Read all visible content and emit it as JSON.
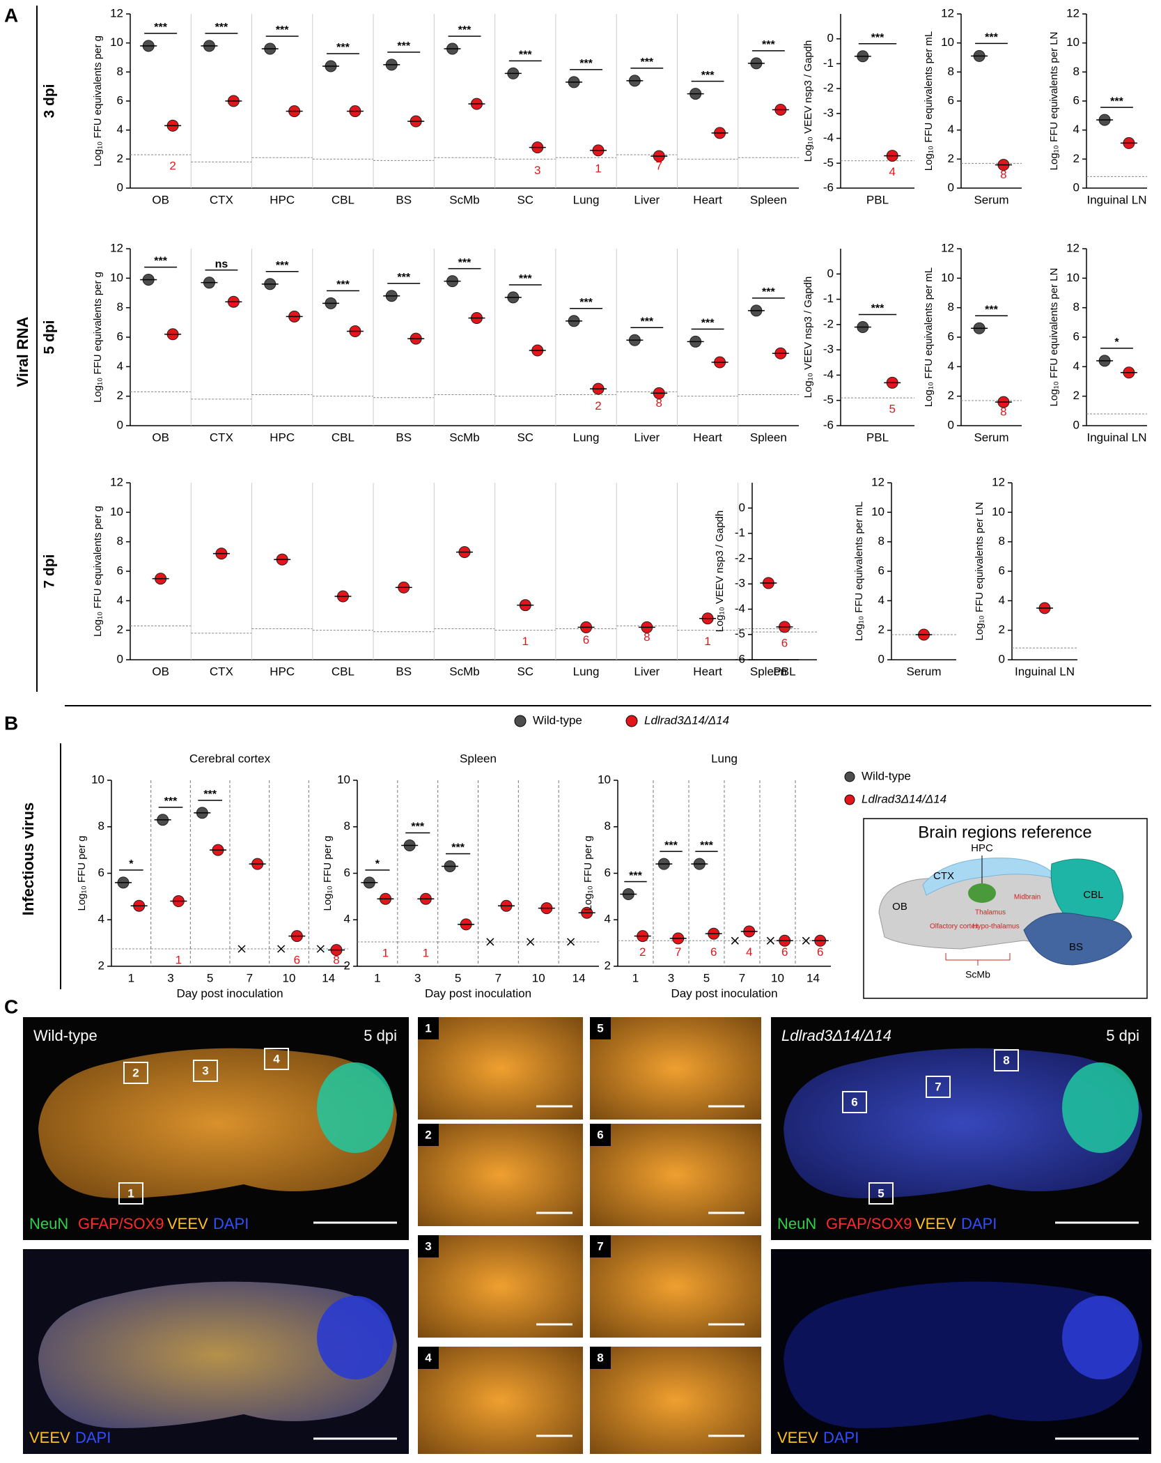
{
  "labels": {
    "A": "A",
    "B": "B",
    "C": "C",
    "viral_rna": "Viral RNA",
    "infectious": "Infectious virus",
    "dpi3": "3 dpi",
    "dpi5": "5 dpi",
    "dpi7": "7 dpi"
  },
  "legend": [
    {
      "name": "Wild-type",
      "color": "#4d4d4d"
    },
    {
      "name": "Ldlrad3Δ14/Δ14",
      "color": "#e3151b"
    }
  ],
  "brain_reference": {
    "title": "Brain regions reference",
    "regions": [
      "HPC",
      "CTX",
      "OB",
      "CBL",
      "BS",
      "Thalamus",
      "Midbrain",
      "Olfactory cortex",
      "Hypo-thalamus",
      "ScMb"
    ]
  },
  "panel_c": {
    "wt_title": "Wild-type",
    "ko_title": "Ldlrad3Δ14/Δ14",
    "dpi": "5 dpi",
    "neun": "NeuN",
    "gfap": "GFAP/SOX9",
    "veev": "VEEV",
    "dapi": "DAPI",
    "boxes": [
      "1",
      "2",
      "3",
      "4",
      "5",
      "6",
      "7",
      "8"
    ]
  },
  "chart_data": [
    {
      "type": "dot",
      "y_label": "Log₁₀ FFU equivalents per g",
      "categories": [
        "OB",
        "CTX",
        "HPC",
        "CBL",
        "BS",
        "ScMb",
        "SC",
        "Lung",
        "Liver",
        "Heart",
        "Spleen"
      ],
      "series": [
        {
          "color": "#4d4d4d",
          "values": [
            9.8,
            9.8,
            9.6,
            8.4,
            8.5,
            9.6,
            7.9,
            7.3,
            7.4,
            6.5,
            8.6
          ]
        },
        {
          "color": "#e3151b",
          "values": [
            4.3,
            6.0,
            5.3,
            5.3,
            4.6,
            5.8,
            2.8,
            2.6,
            2.2,
            3.8,
            5.4
          ]
        }
      ],
      "ylim": [
        0,
        12
      ],
      "yticks": [
        0,
        2,
        4,
        6,
        8,
        10,
        12
      ],
      "lod": [
        2.3,
        1.8,
        2.1,
        2.0,
        1.9,
        2.1,
        2.0,
        2.1,
        2.3,
        2.0,
        2.1
      ],
      "lod_counts": [
        "2",
        null,
        null,
        null,
        null,
        null,
        "3",
        "1",
        "7",
        null,
        null
      ],
      "significance": [
        "***",
        "***",
        "***",
        "***",
        "***",
        "***",
        "***",
        "***",
        "***",
        "***",
        "***"
      ]
    },
    {
      "type": "dot",
      "y_label": "Log₁₀ VEEV nsp3 / Gapdh",
      "categories": [
        "PBL"
      ],
      "series": [
        {
          "color": "#4d4d4d",
          "values": [
            -0.7
          ]
        },
        {
          "color": "#e3151b",
          "values": [
            -4.7
          ]
        }
      ],
      "ylim": [
        -6,
        1
      ],
      "yticks": [
        -6,
        -5,
        -4,
        -3,
        -2,
        -1,
        0
      ],
      "lod": [
        -4.9
      ],
      "lod_counts": [
        "4"
      ],
      "significance": [
        "***"
      ]
    },
    {
      "type": "dot",
      "y_label": "Log₁₀ FFU equivalents per mL",
      "categories": [
        "Serum"
      ],
      "series": [
        {
          "color": "#4d4d4d",
          "values": [
            9.1
          ]
        },
        {
          "color": "#e3151b",
          "values": [
            1.6
          ]
        }
      ],
      "ylim": [
        0,
        12
      ],
      "yticks": [
        0,
        2,
        4,
        6,
        8,
        10,
        12
      ],
      "lod": [
        1.7
      ],
      "lod_counts": [
        "8"
      ],
      "significance": [
        "***"
      ]
    },
    {
      "type": "dot",
      "y_label": "Log₁₀ FFU equivalents per LN",
      "categories": [
        "Inguinal LN"
      ],
      "series": [
        {
          "color": "#4d4d4d",
          "values": [
            4.7
          ]
        },
        {
          "color": "#e3151b",
          "values": [
            3.1
          ]
        }
      ],
      "ylim": [
        0,
        12
      ],
      "yticks": [
        0,
        2,
        4,
        6,
        8,
        10,
        12
      ],
      "lod": [
        0.8
      ],
      "lod_counts": [
        null
      ],
      "significance": [
        "***"
      ]
    },
    {
      "type": "dot",
      "y_label": "Log₁₀ FFU equivalents per g",
      "categories": [
        "OB",
        "CTX",
        "HPC",
        "CBL",
        "BS",
        "ScMb",
        "SC",
        "Lung",
        "Liver",
        "Heart",
        "Spleen"
      ],
      "series": [
        {
          "color": "#4d4d4d",
          "values": [
            9.9,
            9.7,
            9.6,
            8.3,
            8.8,
            9.8,
            8.7,
            7.1,
            5.8,
            5.7,
            7.8
          ]
        },
        {
          "color": "#e3151b",
          "values": [
            6.2,
            8.4,
            7.4,
            6.4,
            5.9,
            7.3,
            5.1,
            2.5,
            2.2,
            4.3,
            4.9
          ]
        }
      ],
      "ylim": [
        0,
        12
      ],
      "yticks": [
        0,
        2,
        4,
        6,
        8,
        10,
        12
      ],
      "lod": [
        2.3,
        1.8,
        2.1,
        2.0,
        1.9,
        2.1,
        2.0,
        2.1,
        2.3,
        2.0,
        2.1
      ],
      "lod_counts": [
        null,
        null,
        null,
        null,
        null,
        null,
        null,
        "2",
        "8",
        null,
        null
      ],
      "significance": [
        "***",
        "ns",
        "***",
        "***",
        "***",
        "***",
        "***",
        "***",
        "***",
        "***",
        "***"
      ]
    },
    {
      "type": "dot",
      "y_label": "Log₁₀ VEEV nsp3 / Gapdh",
      "categories": [
        "PBL"
      ],
      "series": [
        {
          "color": "#4d4d4d",
          "values": [
            -2.1
          ]
        },
        {
          "color": "#e3151b",
          "values": [
            -4.3
          ]
        }
      ],
      "ylim": [
        -6,
        1
      ],
      "yticks": [
        -6,
        -5,
        -4,
        -3,
        -2,
        -1,
        0
      ],
      "lod": [
        -4.9
      ],
      "lod_counts": [
        "5"
      ],
      "significance": [
        "***"
      ]
    },
    {
      "type": "dot",
      "y_label": "Log₁₀ FFU equivalents per mL",
      "categories": [
        "Serum"
      ],
      "series": [
        {
          "color": "#4d4d4d",
          "values": [
            6.6
          ]
        },
        {
          "color": "#e3151b",
          "values": [
            1.6
          ]
        }
      ],
      "ylim": [
        0,
        12
      ],
      "yticks": [
        0,
        2,
        4,
        6,
        8,
        10,
        12
      ],
      "lod": [
        1.7
      ],
      "lod_counts": [
        "8"
      ],
      "significance": [
        "***"
      ]
    },
    {
      "type": "dot",
      "y_label": "Log₁₀ FFU equivalents per LN",
      "categories": [
        "Inguinal LN"
      ],
      "series": [
        {
          "color": "#4d4d4d",
          "values": [
            4.4
          ]
        },
        {
          "color": "#e3151b",
          "values": [
            3.6
          ]
        }
      ],
      "ylim": [
        0,
        12
      ],
      "yticks": [
        0,
        2,
        4,
        6,
        8,
        10,
        12
      ],
      "lod": [
        0.8
      ],
      "lod_counts": [
        null
      ],
      "significance": [
        "*"
      ]
    },
    {
      "type": "dot",
      "y_label": "Log₁₀ FFU equivalents per g",
      "categories": [
        "OB",
        "CTX",
        "HPC",
        "CBL",
        "BS",
        "ScMb",
        "SC",
        "Lung",
        "Liver",
        "Heart",
        "Spleen"
      ],
      "series": [
        {
          "color": "#4d4d4d",
          "values": [
            null,
            null,
            null,
            null,
            null,
            null,
            null,
            null,
            null,
            null,
            null
          ]
        },
        {
          "color": "#e3151b",
          "values": [
            5.5,
            7.2,
            6.8,
            4.3,
            4.9,
            7.3,
            3.7,
            2.2,
            2.2,
            2.8,
            5.2
          ]
        }
      ],
      "ylim": [
        0,
        12
      ],
      "yticks": [
        0,
        2,
        4,
        6,
        8,
        10,
        12
      ],
      "lod": [
        2.3,
        1.8,
        2.1,
        2.0,
        1.9,
        2.1,
        2.0,
        2.1,
        2.3,
        2.0,
        2.1
      ],
      "lod_counts": [
        null,
        null,
        null,
        null,
        null,
        null,
        "1",
        "6",
        "8",
        "1",
        null
      ],
      "significance": [
        null,
        null,
        null,
        null,
        null,
        null,
        null,
        null,
        null,
        null,
        null
      ]
    },
    {
      "type": "dot",
      "y_label": "Log₁₀ VEEV nsp3 / Gapdh",
      "categories": [
        "PBL"
      ],
      "series": [
        {
          "color": "#4d4d4d",
          "values": [
            null
          ]
        },
        {
          "color": "#e3151b",
          "values": [
            -4.7
          ]
        }
      ],
      "ylim": [
        -6,
        1
      ],
      "yticks": [
        -6,
        -5,
        -4,
        -3,
        -2,
        -1,
        0
      ],
      "lod": [
        -4.9
      ],
      "lod_counts": [
        "6"
      ],
      "significance": [
        null
      ]
    },
    {
      "type": "dot",
      "y_label": "Log₁₀ FFU equivalents per mL",
      "categories": [
        "Serum"
      ],
      "series": [
        {
          "color": "#4d4d4d",
          "values": [
            null
          ]
        },
        {
          "color": "#e3151b",
          "values": [
            1.7
          ]
        }
      ],
      "ylim": [
        0,
        12
      ],
      "yticks": [
        0,
        2,
        4,
        6,
        8,
        10,
        12
      ],
      "lod": [
        1.7
      ],
      "lod_counts": [
        null
      ],
      "significance": [
        null
      ]
    },
    {
      "type": "dot",
      "y_label": "Log₁₀ FFU equivalents per LN",
      "categories": [
        "Inguinal LN"
      ],
      "series": [
        {
          "color": "#4d4d4d",
          "values": [
            null
          ]
        },
        {
          "color": "#e3151b",
          "values": [
            3.5
          ]
        }
      ],
      "ylim": [
        0,
        12
      ],
      "yticks": [
        0,
        2,
        4,
        6,
        8,
        10,
        12
      ],
      "lod": [
        0.8
      ],
      "lod_counts": [
        null
      ],
      "significance": [
        null
      ]
    },
    {
      "type": "dot",
      "title": "Cerebral cortex",
      "x_label": "Day post inoculation",
      "y_label": "Log₁₀ FFU per g",
      "categories": [
        "1",
        "3",
        "5",
        "7",
        "10",
        "14"
      ],
      "series": [
        {
          "color": "#4d4d4d",
          "values": [
            5.6,
            8.3,
            8.6,
            null,
            null,
            null
          ]
        },
        {
          "color": "#e3151b",
          "values": [
            4.6,
            4.8,
            7.0,
            6.4,
            3.3,
            2.7
          ]
        }
      ],
      "ylim": [
        2,
        10
      ],
      "yticks": [
        2,
        4,
        6,
        8,
        10
      ],
      "lod": [
        2.75,
        2.75,
        2.75,
        2.75,
        2.75,
        2.75
      ],
      "lod_counts": [
        null,
        "1",
        null,
        null,
        "6",
        "8"
      ],
      "significance": [
        "*",
        "***",
        "***",
        null,
        null,
        null
      ]
    },
    {
      "type": "dot",
      "title": "Spleen",
      "x_label": "Day post inoculation",
      "y_label": "Log₁₀ FFU per g",
      "categories": [
        "1",
        "3",
        "5",
        "7",
        "10",
        "14"
      ],
      "series": [
        {
          "color": "#4d4d4d",
          "values": [
            5.6,
            7.2,
            6.3,
            null,
            null,
            null
          ]
        },
        {
          "color": "#e3151b",
          "values": [
            4.9,
            4.9,
            3.8,
            4.6,
            4.5,
            4.3
          ]
        }
      ],
      "ylim": [
        2,
        10
      ],
      "yticks": [
        2,
        4,
        6,
        8,
        10
      ],
      "lod": [
        3.05,
        3.05,
        3.05,
        3.05,
        3.05,
        3.05
      ],
      "lod_counts": [
        "1",
        "1",
        null,
        null,
        null,
        null
      ],
      "significance": [
        "*",
        "***",
        "***",
        null,
        null,
        null
      ]
    },
    {
      "type": "dot",
      "title": "Lung",
      "x_label": "Day post inoculation",
      "y_label": "Log₁₀ FFU per g",
      "categories": [
        "1",
        "3",
        "5",
        "7",
        "10",
        "14"
      ],
      "series": [
        {
          "color": "#4d4d4d",
          "values": [
            5.1,
            6.4,
            6.4,
            null,
            null,
            null
          ]
        },
        {
          "color": "#e3151b",
          "values": [
            3.3,
            3.2,
            3.4,
            3.5,
            3.1,
            3.1
          ]
        }
      ],
      "ylim": [
        2,
        10
      ],
      "yticks": [
        2,
        4,
        6,
        8,
        10
      ],
      "lod": [
        3.1,
        3.1,
        3.1,
        3.1,
        3.1,
        3.1
      ],
      "lod_counts": [
        "2",
        "7",
        "6",
        "4",
        "6",
        "6"
      ],
      "significance": [
        "***",
        "***",
        "***",
        null,
        null,
        null
      ]
    }
  ]
}
